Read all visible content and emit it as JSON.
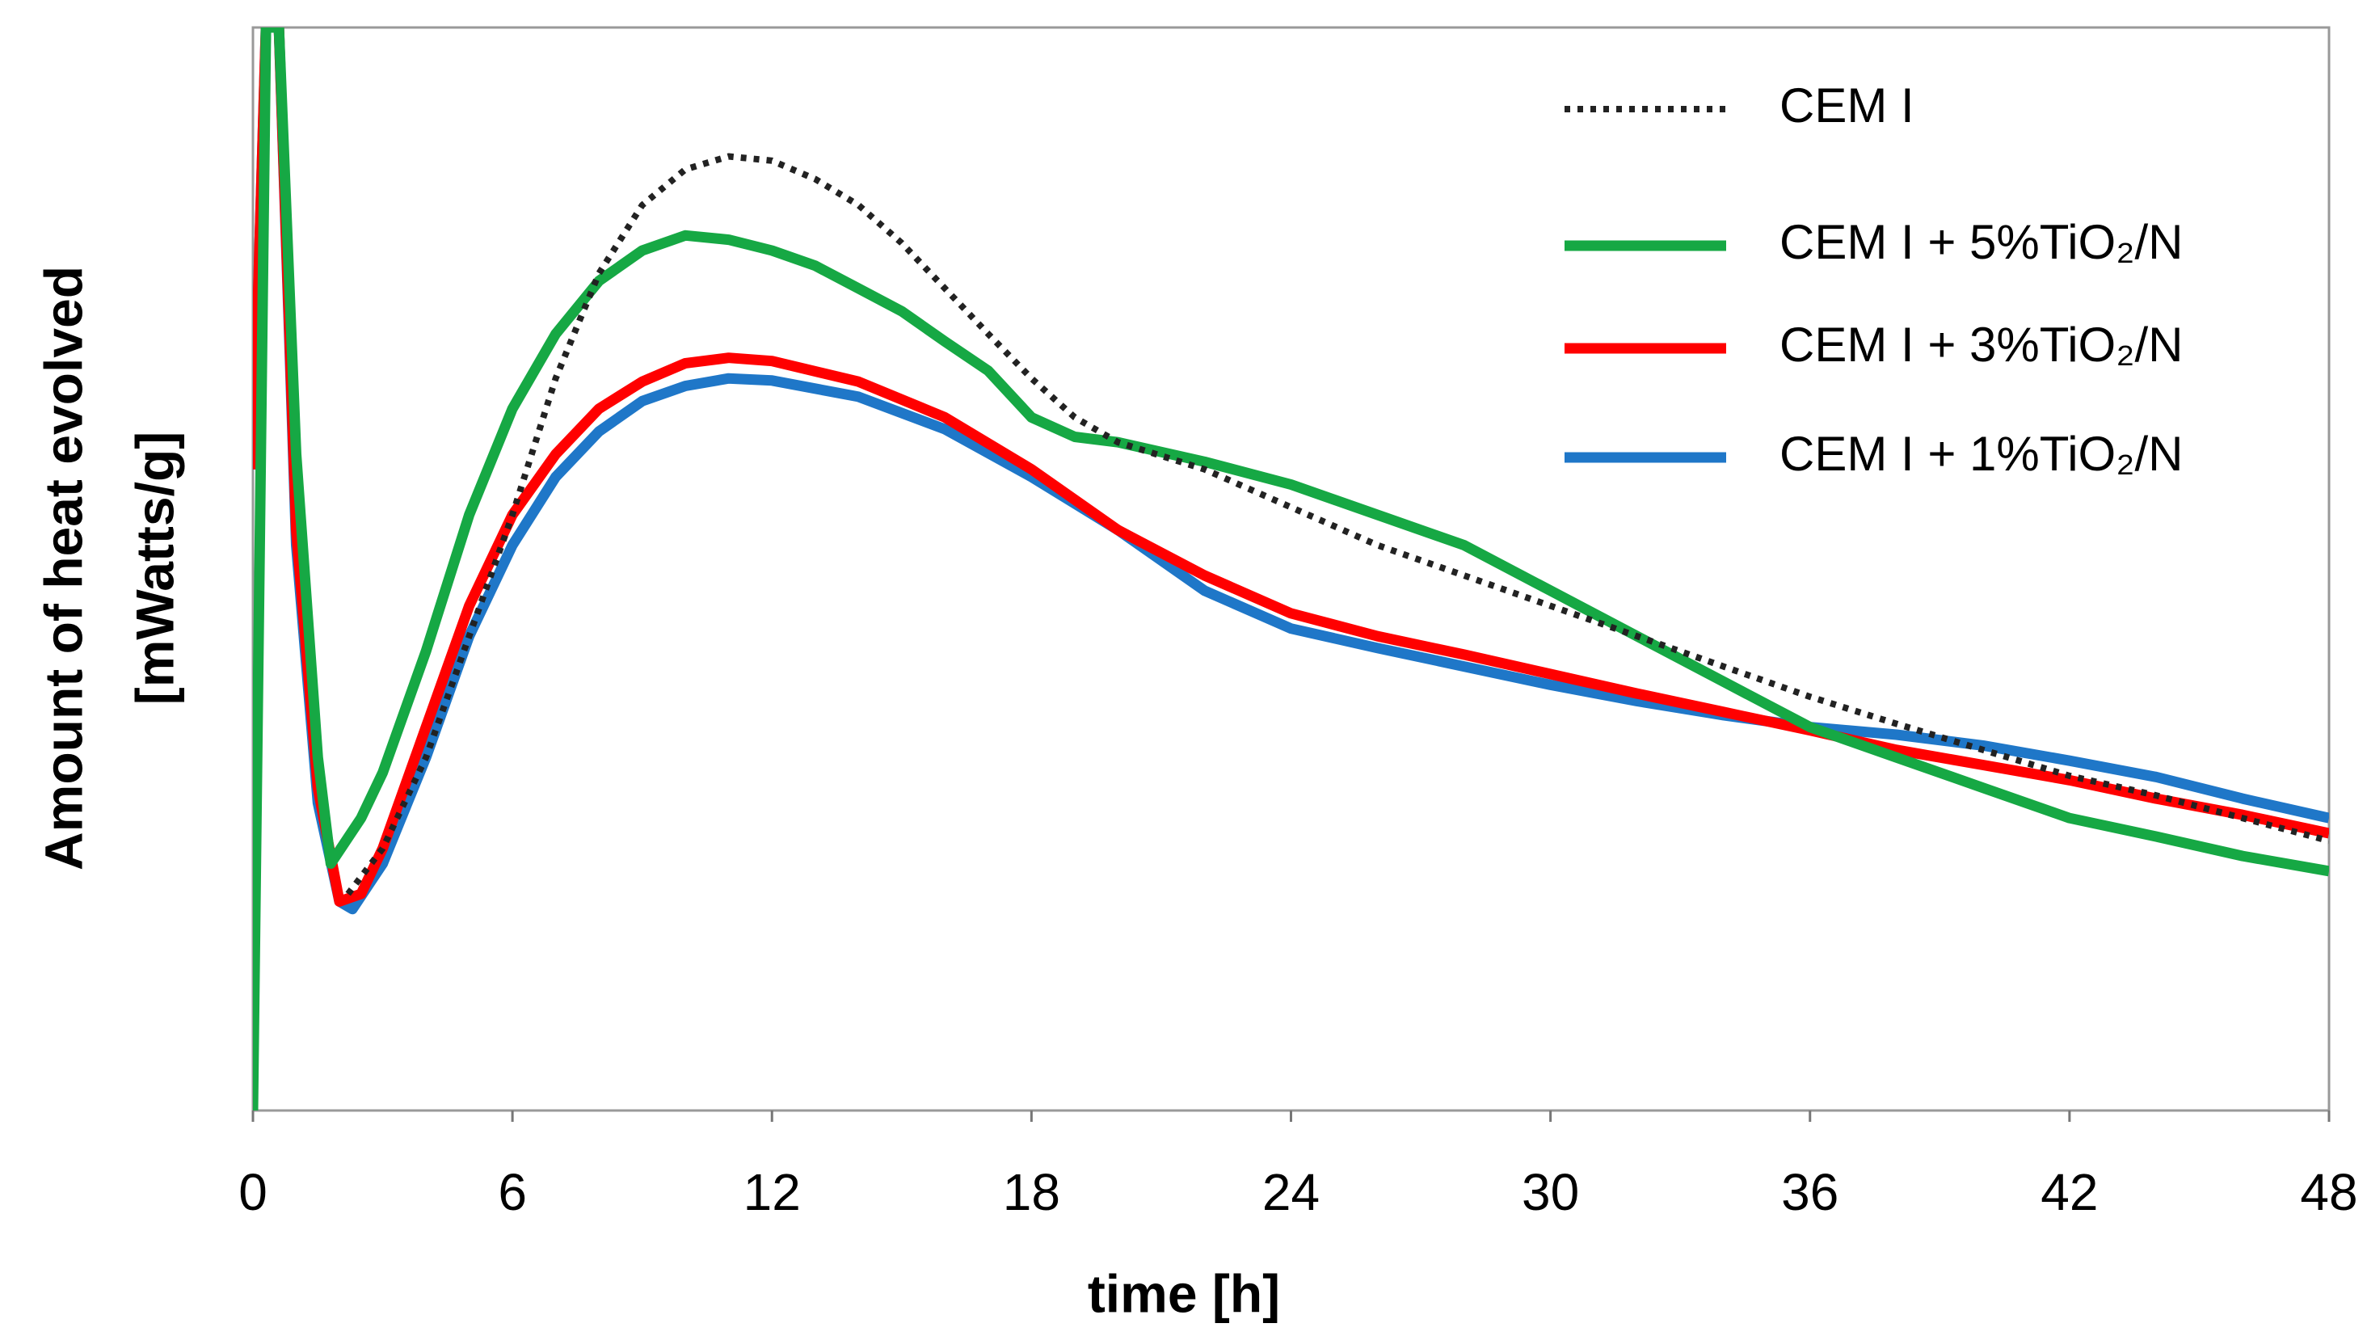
{
  "chart_data": {
    "type": "line",
    "xlabel": "time [h]",
    "ylabel": [
      "Amount of heat evolved",
      "[mWatts/g]"
    ],
    "xlim": [
      0,
      48
    ],
    "xticks": [
      0,
      6,
      12,
      18,
      24,
      30,
      36,
      42,
      48
    ],
    "ylim": [
      0,
      100
    ],
    "legend": "top-right",
    "series": [
      {
        "name": "CEM I",
        "color": "#222222",
        "style": "dotted",
        "x": [
          2.2,
          3,
          4,
          5,
          6,
          7,
          8,
          9,
          10,
          11,
          12,
          13,
          14,
          15,
          16,
          17,
          18,
          19,
          20,
          22,
          24,
          26,
          28,
          30,
          32,
          34,
          36,
          38,
          40,
          42,
          44,
          46,
          48
        ],
        "values": [
          20,
          24.2,
          32.6,
          43.8,
          55,
          67.6,
          77.3,
          83.6,
          86.9,
          88.1,
          87.7,
          86,
          83.6,
          80.1,
          75.9,
          71.7,
          67.6,
          64,
          61.7,
          59.2,
          55.7,
          52.2,
          49.4,
          46.6,
          43.8,
          41,
          38.2,
          35.7,
          33.3,
          30.9,
          29.1,
          27,
          24.9
        ]
      },
      {
        "name": "CEM I + 5%TiO₂/N",
        "color": "#16a844",
        "style": "solid",
        "x": [
          0,
          0.3,
          0.6,
          1,
          1.5,
          1.8,
          2.5,
          3,
          4,
          5,
          6,
          7,
          8,
          9,
          10,
          11,
          12,
          13,
          14,
          15,
          16,
          17,
          18,
          19,
          20,
          22,
          24,
          26,
          28,
          30,
          32,
          34,
          36,
          38,
          40,
          42,
          44,
          46,
          48
        ],
        "values": [
          0,
          100,
          100,
          60.6,
          32.6,
          22.8,
          27,
          31.2,
          42.4,
          55,
          64.8,
          71.7,
          76.6,
          79.4,
          80.8,
          80.4,
          79.4,
          78,
          75.9,
          73.8,
          71,
          68.3,
          64,
          62.2,
          61.7,
          59.9,
          57.8,
          55,
          52.2,
          48,
          43.8,
          39.6,
          35.4,
          32.6,
          29.8,
          27,
          25.3,
          23.5,
          22.1
        ]
      },
      {
        "name": "CEM I + 3%TiO₂/N",
        "color": "#ff0000",
        "style": "solid",
        "x": [
          0,
          0.3,
          0.6,
          1,
          1.5,
          2,
          2.5,
          3,
          4,
          5,
          6,
          7,
          8,
          9,
          10,
          11,
          12,
          14,
          16,
          18,
          20,
          22,
          24,
          26,
          28,
          30,
          32,
          34,
          36,
          38,
          40,
          42,
          44,
          46,
          48
        ],
        "values": [
          59.2,
          100,
          100,
          53.6,
          29.8,
          19.3,
          20,
          24.2,
          35.4,
          46.6,
          55,
          60.6,
          64.8,
          67.3,
          69,
          69.5,
          69.2,
          67.3,
          64,
          59.2,
          53.6,
          49.4,
          45.9,
          43.8,
          42.1,
          40.3,
          38.5,
          36.8,
          35.1,
          33.3,
          31.9,
          30.5,
          28.8,
          27.3,
          25.6
        ]
      },
      {
        "name": "CEM I + 1%TiO₂/N",
        "color": "#1f77c8",
        "style": "solid",
        "x": [
          0,
          0.3,
          0.6,
          1,
          1.5,
          2,
          2.3,
          3,
          4,
          5,
          6,
          7,
          8,
          9,
          10,
          11,
          12,
          14,
          16,
          18,
          20,
          22,
          24,
          26,
          28,
          30,
          32,
          34,
          36,
          38,
          40,
          42,
          44,
          46,
          48
        ],
        "values": [
          59.2,
          100,
          100,
          52.2,
          28.4,
          19.3,
          18.6,
          22.8,
          32.6,
          43.8,
          52.2,
          58.5,
          62.7,
          65.5,
          66.9,
          67.6,
          67.4,
          65.9,
          62.9,
          58.5,
          53.6,
          48,
          44.5,
          42.7,
          41,
          39.3,
          37.8,
          36.5,
          35.4,
          34.7,
          33.7,
          32.3,
          30.8,
          28.8,
          27
        ]
      }
    ]
  }
}
